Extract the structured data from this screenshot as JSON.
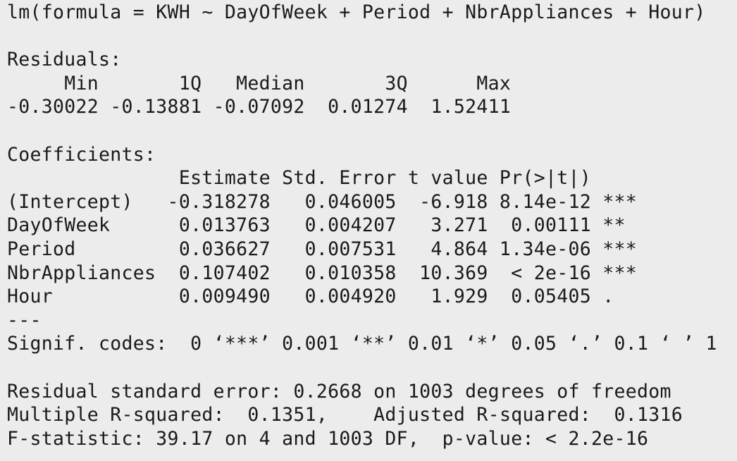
{
  "call": "lm(formula = KWH ~ DayOfWeek + Period + NbrAppliances + Hour)",
  "residuals": {
    "title": "Residuals:",
    "header": "     Min       1Q   Median       3Q      Max ",
    "values": "-0.30022 -0.13881 -0.07092  0.01274  1.52411 "
  },
  "coefficients": {
    "title": "Coefficients:",
    "header": "               Estimate Std. Error t value Pr(>|t|)    ",
    "rows": [
      "(Intercept)   -0.318278   0.046005  -6.918 8.14e-12 ***",
      "DayOfWeek      0.013763   0.004207   3.271  0.00111 ** ",
      "Period         0.036627   0.007531   4.864 1.34e-06 ***",
      "NbrAppliances  0.107402   0.010358  10.369  < 2e-16 ***",
      "Hour           0.009490   0.004920   1.929  0.05405 .  "
    ],
    "separator": "---",
    "signif_codes": "Signif. codes:  0 ‘***’ 0.001 ‘**’ 0.01 ‘*’ 0.05 ‘.’ 0.1 ‘ ’ 1"
  },
  "summary": {
    "residual_se": "Residual standard error: 0.2668 on 1003 degrees of freedom",
    "r_squared": "Multiple R-squared:  0.1351,\tAdjusted R-squared:  0.1316 ",
    "f_statistic": "F-statistic: 39.17 on 4 and 1003 DF,  p-value: < 2.2e-16"
  }
}
